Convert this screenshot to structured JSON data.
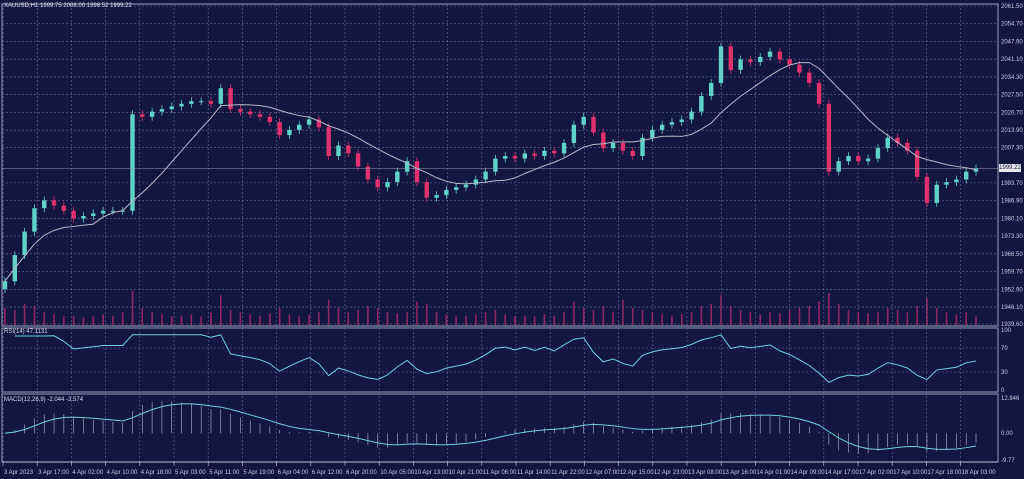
{
  "header": {
    "symbol": "XAUUSD,H1",
    "ohlc_text": "1999.75 2008.00 1998.52 1999.22"
  },
  "colors": {
    "background": "#13163f",
    "bull": "#5fd3c8",
    "bear": "#e0306e",
    "ma": "#b8b8c8",
    "grid": "#6a6f9a",
    "indicator": "#6fd0e0",
    "volume": "#c03070"
  },
  "chart_data": [
    {
      "type": "candlestick",
      "title": "XAUUSD,H1",
      "ylim": [
        1939.6,
        2061.5
      ],
      "y_ticks": [
        "2061.50",
        "2054.70",
        "2047.90",
        "2041.10",
        "2034.30",
        "2027.50",
        "2020.70",
        "2013.90",
        "2007.30",
        "1993.70",
        "1986.90",
        "1980.10",
        "1973.30",
        "1966.50",
        "1959.70",
        "1952.90",
        "1946.10",
        "1939.60"
      ],
      "current_price": "1999.22",
      "x_ticks": [
        "3 Apr 2023",
        "3 Apr 17:00",
        "4 Apr 02:00",
        "4 Apr 10:00",
        "4 Apr 18:00",
        "5 Apr 03:00",
        "5 Apr 11:00",
        "5 Apr 19:00",
        "6 Apr 04:00",
        "6 Apr 12:00",
        "6 Apr 20:00",
        "10 Apr 05:00",
        "10 Apr 13:00",
        "10 Apr 21:00",
        "11 Apr 06:00",
        "11 Apr 14:00",
        "11 Apr 22:00",
        "12 Apr 07:00",
        "12 Apr 15:00",
        "12 Apr 23:00",
        "13 Apr 08:00",
        "13 Apr 16:00",
        "14 Apr 01:00",
        "14 Apr 09:00",
        "14 Apr 17:00",
        "17 Apr 02:00",
        "17 Apr 10:00",
        "17 Apr 18:00",
        "18 Apr 03:00"
      ],
      "close": [
        1956,
        1966,
        1975,
        1984,
        1987,
        1985,
        1983,
        1980,
        1981,
        1982,
        1983,
        1983,
        1983,
        2020,
        2019,
        2021,
        2022,
        2023,
        2024,
        2025,
        2025,
        2024,
        2030,
        2022,
        2021,
        2020,
        2019,
        2017,
        2012,
        2014,
        2016,
        2018,
        2015,
        2004,
        2008,
        2005,
        2000,
        1995,
        1992,
        1994,
        1998,
        2002,
        1994,
        1988,
        1989,
        1991,
        1992,
        1993,
        1995,
        1998,
        2003,
        2004,
        2003,
        2005,
        2004,
        2006,
        2005,
        2009,
        2016,
        2019,
        2013,
        2007,
        2009,
        2006,
        2004,
        2011,
        2014,
        2016,
        2017,
        2018,
        2021,
        2027,
        2032,
        2046,
        2037,
        2041,
        2040,
        2042,
        2044,
        2041,
        2039,
        2036,
        2032,
        2024,
        1998,
        2002,
        2004,
        2002,
        2003,
        2007,
        2011,
        2009,
        2006,
        1996,
        1986,
        1993,
        1994,
        1995,
        1998,
        1999.22
      ],
      "volume": [
        40,
        35,
        50,
        45,
        30,
        25,
        20,
        22,
        18,
        20,
        25,
        22,
        30,
        80,
        40,
        30,
        25,
        20,
        22,
        25,
        20,
        30,
        70,
        35,
        30,
        25,
        22,
        28,
        40,
        25,
        20,
        25,
        30,
        60,
        40,
        30,
        35,
        45,
        40,
        30,
        28,
        30,
        55,
        50,
        30,
        25,
        20,
        22,
        25,
        30,
        35,
        25,
        20,
        22,
        20,
        25,
        22,
        30,
        55,
        40,
        35,
        45,
        30,
        60,
        40,
        35,
        30,
        25,
        22,
        25,
        30,
        45,
        50,
        70,
        45,
        35,
        30,
        25,
        30,
        28,
        35,
        40,
        45,
        55,
        75,
        50,
        35,
        30,
        28,
        30,
        40,
        35,
        30,
        45,
        65,
        40,
        30,
        25,
        30,
        20
      ],
      "moving_average": "line"
    },
    {
      "type": "line",
      "title": "RSI(14) 47.1131",
      "ylim": [
        0,
        100
      ],
      "y_ticks": [
        "100",
        "70",
        "30",
        "0"
      ],
      "levels": [
        70,
        30
      ]
    },
    {
      "type": "histogram+line",
      "title": "MACD(12,26,9) -2.044 -3.574",
      "ylim": [
        -9.77,
        12.846
      ],
      "y_ticks": [
        "12.846",
        "0.00",
        "-9.77"
      ]
    }
  ]
}
